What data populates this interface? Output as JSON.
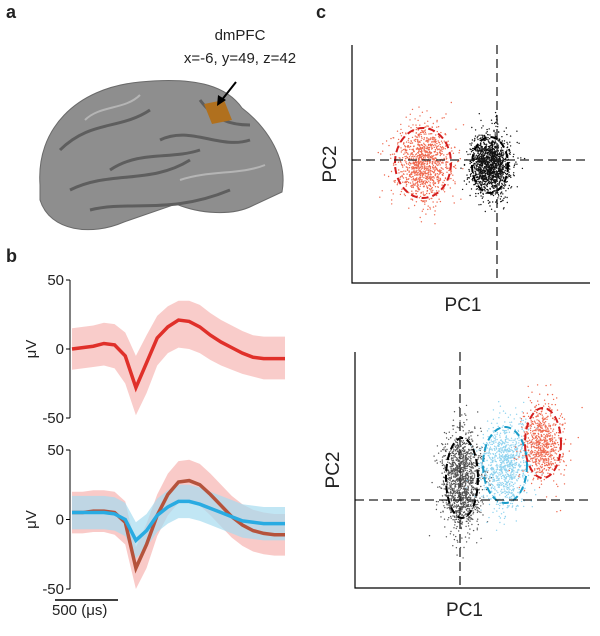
{
  "panel_labels": [
    "a",
    "b",
    "c"
  ],
  "brain": {
    "region": "dmPFC",
    "coords": "x=-6, y=49, z=42"
  },
  "scale_bar": "500 (μs)",
  "chart_data": [
    {
      "type": "line",
      "ylabel": "μV",
      "ylim": [
        -50,
        50
      ],
      "yticks": [
        -50,
        0,
        50
      ],
      "series": [
        {
          "color": "#e0302a",
          "band_color": "#f7b7b3",
          "values": [
            0,
            1,
            2,
            4,
            3,
            -5,
            -28,
            -10,
            8,
            16,
            21,
            20,
            16,
            10,
            5,
            1,
            -3,
            -6,
            -7,
            -7,
            -7
          ],
          "lower": [
            -15,
            -14,
            -13,
            -12,
            -14,
            -25,
            -48,
            -32,
            -12,
            -3,
            1,
            0,
            -3,
            -8,
            -12,
            -15,
            -18,
            -20,
            -22,
            -22,
            -22
          ],
          "upper": [
            15,
            16,
            17,
            19,
            18,
            12,
            -5,
            10,
            24,
            31,
            35,
            35,
            32,
            26,
            21,
            17,
            13,
            10,
            9,
            9,
            9
          ]
        }
      ]
    },
    {
      "type": "line",
      "ylabel": "μV",
      "ylim": [
        -50,
        50
      ],
      "yticks": [
        -50,
        0,
        50
      ],
      "series": [
        {
          "color": "#b5533c",
          "band_color": "#f6b3b0",
          "values": [
            5,
            5,
            6,
            6,
            5,
            -2,
            -35,
            -18,
            3,
            18,
            27,
            28,
            25,
            18,
            10,
            2,
            -4,
            -8,
            -10,
            -11,
            -11
          ],
          "lower": [
            -10,
            -10,
            -9,
            -9,
            -11,
            -18,
            -50,
            -35,
            -12,
            3,
            12,
            13,
            10,
            3,
            -5,
            -13,
            -19,
            -23,
            -25,
            -26,
            -26
          ],
          "upper": [
            20,
            20,
            21,
            21,
            20,
            13,
            -20,
            -3,
            18,
            33,
            42,
            43,
            40,
            33,
            25,
            17,
            11,
            7,
            5,
            4,
            4
          ]
        },
        {
          "color": "#29abe2",
          "band_color": "#a6dcf0",
          "values": [
            5,
            5,
            5,
            5,
            4,
            0,
            -15,
            -8,
            3,
            9,
            13,
            13,
            11,
            8,
            5,
            2,
            -1,
            -2,
            -3,
            -3,
            -3
          ],
          "lower": [
            -7,
            -7,
            -7,
            -7,
            -8,
            -12,
            -28,
            -20,
            -9,
            -3,
            1,
            1,
            -1,
            -4,
            -7,
            -10,
            -13,
            -14,
            -15,
            -15,
            -15
          ],
          "upper": [
            17,
            17,
            17,
            17,
            16,
            12,
            -2,
            4,
            15,
            21,
            25,
            25,
            23,
            20,
            17,
            14,
            11,
            10,
            9,
            9,
            9
          ]
        }
      ]
    },
    {
      "type": "scatter",
      "xlabel": "PC1",
      "ylabel": "PC2",
      "crosshair": true,
      "clusters": [
        {
          "color": "#ef6a50",
          "edge_color": "#d41f1f"
        },
        {
          "color": "#111111",
          "edge_color": "#000000"
        }
      ]
    },
    {
      "type": "scatter",
      "xlabel": "PC1",
      "ylabel": "PC2",
      "crosshair": true,
      "clusters": [
        {
          "color": "#555555",
          "edge_color": "#000000"
        },
        {
          "color": "#8fd3ef",
          "edge_color": "#1a9cc8"
        },
        {
          "color": "#ef6a50",
          "edge_color": "#d41f1f"
        }
      ]
    }
  ]
}
